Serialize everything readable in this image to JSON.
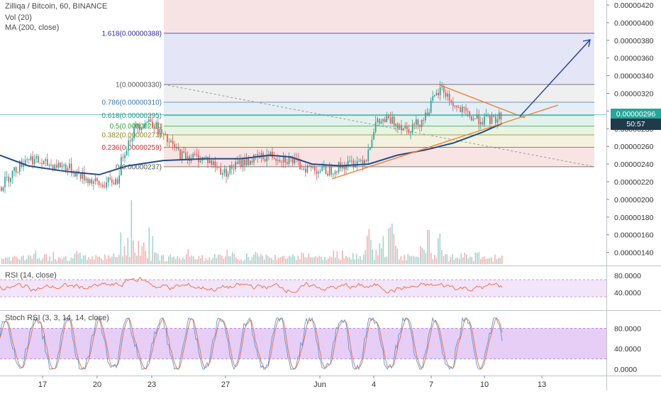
{
  "header": {
    "symbol_line": "Zilliqa / Bitcoin, 60, BINANCE",
    "vol_line": "Vol (20)",
    "ma_line": "MA (200, close)"
  },
  "price_axis": {
    "ticks": [
      "0.00000420",
      "0.00000400",
      "0.00000380",
      "0.00000360",
      "0.00000340",
      "0.00000320",
      "0.00000300",
      "0.00000280",
      "0.00000260",
      "0.00000240",
      "0.00000220",
      "0.00000200",
      "0.00000180",
      "0.00000160",
      "0.00000140"
    ],
    "current_price": "0.00000296",
    "countdown": "50:57"
  },
  "rsi": {
    "label": "RSI (14, close)",
    "ticks": [
      "80.0000",
      "40.0000"
    ]
  },
  "stoch": {
    "label": "Stoch RSI (3, 3, 14, 14, close)",
    "ticks": [
      "80.0000",
      "40.0000",
      "0.0000"
    ]
  },
  "time_axis": {
    "labels": [
      "17",
      "20",
      "23",
      "27",
      "Jun",
      "4",
      "7",
      "10",
      "13"
    ]
  },
  "fib_levels": [
    {
      "label": "1.618(0.00000388)",
      "color": "#2c2fa0"
    },
    {
      "label": "1(0.00000330)",
      "color": "#555555"
    },
    {
      "label": "0.786(0.00000310)",
      "color": "#3c78b0"
    },
    {
      "label": "0.618(0.00000295)",
      "color": "#1d9a8a"
    },
    {
      "label": "0.5(0.00000283)",
      "color": "#3a9a3a"
    },
    {
      "label": "0.382(0.00000273)",
      "color": "#8a8a2a"
    },
    {
      "label": "0.236(0.00000259)",
      "color": "#d23030"
    },
    {
      "label": "0(0.00000237)",
      "color": "#555555"
    }
  ],
  "colors": {
    "up": "#26a69a",
    "down": "#ef5350",
    "ma": "#1f4e8c",
    "trend": "#f57c2c",
    "arrow": "#1f3f9c",
    "price_tag": "#26a69a",
    "rsi_line": "#ef6a3a",
    "rsi_band": "#ecd8f6",
    "stoch_band": "#d9b3f2",
    "stoch_k": "#4e9be0",
    "stoch_d": "#ef6a3a"
  },
  "chart_data": {
    "type": "candlestick",
    "title": "Zilliqa / Bitcoin, 60, BINANCE",
    "y_range_price": [
      1.3e-06,
      4.3e-06
    ],
    "price_path": [
      {
        "x": "May 16",
        "y": 2.14e-06
      },
      {
        "x": "May 17",
        "y": 2.48e-06
      },
      {
        "x": "May 18",
        "y": 2.4e-06
      },
      {
        "x": "May 19",
        "y": 2.25e-06
      },
      {
        "x": "May 20",
        "y": 2.16e-06
      },
      {
        "x": "May 21",
        "y": 2.5e-06
      },
      {
        "x": "May 22",
        "y": 2.9e-06
      },
      {
        "x": "May 23",
        "y": 2.78e-06
      },
      {
        "x": "May 24",
        "y": 2.5e-06
      },
      {
        "x": "May 25",
        "y": 2.46e-06
      },
      {
        "x": "May 26",
        "y": 2.5e-06
      },
      {
        "x": "May 27",
        "y": 2.3e-06
      },
      {
        "x": "May 28",
        "y": 2.48e-06
      },
      {
        "x": "May 29",
        "y": 2.5e-06
      },
      {
        "x": "May 30",
        "y": 2.44e-06
      },
      {
        "x": "May 31",
        "y": 2.38e-06
      },
      {
        "x": "Jun 1",
        "y": 2.32e-06
      },
      {
        "x": "Jun 2",
        "y": 2.4e-06
      },
      {
        "x": "Jun 3",
        "y": 2.5e-06
      },
      {
        "x": "Jun 4",
        "y": 2.9e-06
      },
      {
        "x": "Jun 5",
        "y": 2.83e-06
      },
      {
        "x": "Jun 6",
        "y": 3e-06
      },
      {
        "x": "Jun 7",
        "y": 3.22e-06
      },
      {
        "x": "Jun 8",
        "y": 3.08e-06
      },
      {
        "x": "Jun 9",
        "y": 2.9e-06
      },
      {
        "x": "Jun 10",
        "y": 2.92e-06
      },
      {
        "x": "Jun 11",
        "y": 2.96e-06
      }
    ],
    "ma200_path": [
      {
        "x": "May 16",
        "y": 2.5e-06
      },
      {
        "x": "May 18",
        "y": 2.38e-06
      },
      {
        "x": "May 20",
        "y": 2.28e-06
      },
      {
        "x": "May 22",
        "y": 2.38e-06
      },
      {
        "x": "May 24",
        "y": 2.44e-06
      },
      {
        "x": "May 26",
        "y": 2.46e-06
      },
      {
        "x": "May 28",
        "y": 2.5e-06
      },
      {
        "x": "May 30",
        "y": 2.46e-06
      },
      {
        "x": "Jun 1",
        "y": 2.38e-06
      },
      {
        "x": "Jun 3",
        "y": 2.4e-06
      },
      {
        "x": "Jun 5",
        "y": 2.54e-06
      },
      {
        "x": "Jun 7",
        "y": 2.64e-06
      },
      {
        "x": "Jun 9",
        "y": 2.78e-06
      },
      {
        "x": "Jun 11",
        "y": 2.9e-06
      }
    ],
    "rsi_range": [
      0,
      100
    ],
    "stoch_range": [
      0,
      100
    ]
  }
}
